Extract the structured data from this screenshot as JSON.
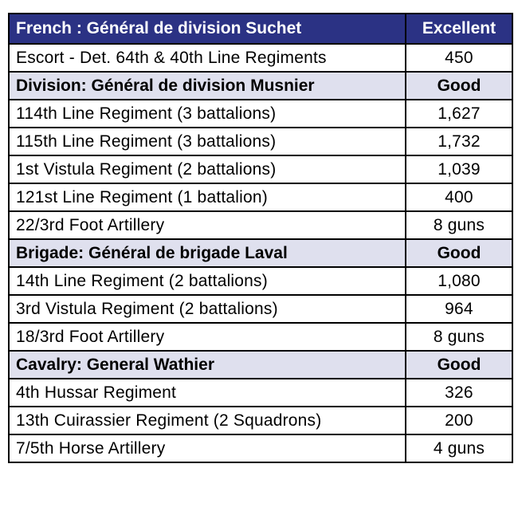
{
  "colors": {
    "header_bg": "#2b3284",
    "header_text": "#ffffff",
    "section_bg": "#dfe0ee",
    "row_bg": "#ffffff",
    "border": "#000000"
  },
  "header": {
    "commander": "French : Général de division Suchet",
    "rating": "Excellent"
  },
  "escort": {
    "unit": "Escort - Det. 64th & 40th Line Regiments",
    "strength": "450"
  },
  "sections": [
    {
      "title": "Division: Général de division Musnier",
      "rating": "Good",
      "units": [
        {
          "unit": "114th Line Regiment (3 battalions)",
          "strength": "1,627"
        },
        {
          "unit": "115th Line Regiment (3 battalions)",
          "strength": "1,732"
        },
        {
          "unit": "1st Vistula Regiment (2 battalions)",
          "strength": "1,039"
        },
        {
          "unit": "121st Line Regiment (1 battalion)",
          "strength": "400"
        },
        {
          "unit": "22/3rd Foot Artillery",
          "strength": "8 guns"
        }
      ]
    },
    {
      "title": "Brigade: Général de brigade Laval",
      "rating": "Good",
      "units": [
        {
          "unit": "14th Line Regiment (2 battalions)",
          "strength": "1,080"
        },
        {
          "unit": "3rd Vistula Regiment (2 battalions)",
          "strength": "964"
        },
        {
          "unit": "18/3rd Foot Artillery",
          "strength": "8 guns"
        }
      ]
    },
    {
      "title": "Cavalry: General Wathier",
      "rating": "Good",
      "units": [
        {
          "unit": "4th Hussar Regiment",
          "strength": "326"
        },
        {
          "unit": "13th Cuirassier Regiment (2 Squadrons)",
          "strength": "200"
        },
        {
          "unit": "7/5th Horse Artillery",
          "strength": "4 guns"
        }
      ]
    }
  ]
}
